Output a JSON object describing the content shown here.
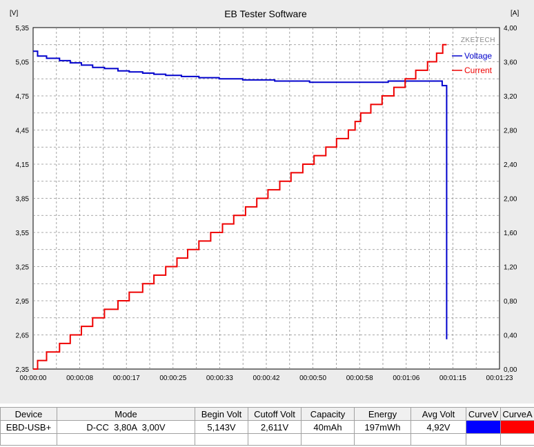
{
  "chart_data": {
    "type": "line",
    "title": "EB Tester Software",
    "brand": "ZKETECH",
    "y_left_unit": "[V]",
    "y_right_unit": "[A]",
    "y_left_ticks": [
      "5,35",
      "5,05",
      "4,75",
      "4,45",
      "4,15",
      "3,85",
      "3,55",
      "3,25",
      "2,95",
      "2,65",
      "2,35"
    ],
    "y_right_ticks": [
      "4,00",
      "3,60",
      "3,20",
      "2,80",
      "2,40",
      "2,00",
      "1,60",
      "1,20",
      "0,80",
      "0,40",
      "0,00"
    ],
    "x_ticks": [
      "00:00:00",
      "00:00:08",
      "00:00:17",
      "00:00:25",
      "00:00:33",
      "00:00:42",
      "00:00:50",
      "00:00:58",
      "00:01:06",
      "00:01:15",
      "00:01:23"
    ],
    "x_range_seconds": [
      0,
      83
    ],
    "y_left_range": [
      2.35,
      5.35
    ],
    "y_right_range": [
      0,
      4.0
    ],
    "grid": true,
    "legend_placement": "top-right",
    "series": [
      {
        "name": "Voltage",
        "axis": "left",
        "color": "#0000cc",
        "step": true,
        "points": [
          [
            0,
            5.143
          ],
          [
            0.8,
            5.1
          ],
          [
            2.4,
            5.08
          ],
          [
            4.7,
            5.06
          ],
          [
            6.6,
            5.04
          ],
          [
            8.6,
            5.02
          ],
          [
            10.6,
            5.0
          ],
          [
            12.7,
            4.99
          ],
          [
            15.1,
            4.97
          ],
          [
            17.1,
            4.96
          ],
          [
            19.5,
            4.95
          ],
          [
            21.5,
            4.94
          ],
          [
            23.6,
            4.93
          ],
          [
            26.4,
            4.92
          ],
          [
            29.5,
            4.91
          ],
          [
            33.1,
            4.9
          ],
          [
            37.3,
            4.89
          ],
          [
            43.0,
            4.88
          ],
          [
            49.2,
            4.87
          ],
          [
            63.2,
            4.88
          ],
          [
            72.8,
            4.84
          ],
          [
            73.6,
            4.84
          ],
          [
            73.6,
            2.611
          ]
        ]
      },
      {
        "name": "Current",
        "axis": "right",
        "color": "#ee0000",
        "step": true,
        "points": [
          [
            0,
            0.0
          ],
          [
            0.8,
            0.1
          ],
          [
            2.4,
            0.2
          ],
          [
            4.7,
            0.3
          ],
          [
            6.6,
            0.4
          ],
          [
            8.6,
            0.5
          ],
          [
            10.6,
            0.6
          ],
          [
            12.7,
            0.7
          ],
          [
            15.1,
            0.8
          ],
          [
            17.1,
            0.9
          ],
          [
            19.5,
            1.0
          ],
          [
            21.5,
            1.1
          ],
          [
            23.6,
            1.2
          ],
          [
            25.6,
            1.3
          ],
          [
            27.5,
            1.4
          ],
          [
            29.5,
            1.5
          ],
          [
            31.6,
            1.6
          ],
          [
            33.7,
            1.7
          ],
          [
            35.7,
            1.8
          ],
          [
            37.8,
            1.9
          ],
          [
            39.8,
            2.0
          ],
          [
            41.8,
            2.1
          ],
          [
            43.9,
            2.2
          ],
          [
            45.9,
            2.3
          ],
          [
            48.0,
            2.4
          ],
          [
            50.0,
            2.5
          ],
          [
            52.1,
            2.6
          ],
          [
            54.0,
            2.7
          ],
          [
            56.1,
            2.8
          ],
          [
            57.3,
            2.9
          ],
          [
            58.3,
            3.0
          ],
          [
            60.1,
            3.1
          ],
          [
            62.1,
            3.2
          ],
          [
            64.2,
            3.3
          ],
          [
            66.2,
            3.4
          ],
          [
            68.1,
            3.5
          ],
          [
            70.2,
            3.6
          ],
          [
            71.8,
            3.7
          ],
          [
            72.9,
            3.8
          ],
          [
            73.6,
            3.8
          ]
        ]
      }
    ]
  },
  "table": {
    "headers": [
      "Device",
      "Mode",
      "Begin Volt",
      "Cutoff Volt",
      "Capacity",
      "Energy",
      "Avg Volt",
      "CurveV",
      "CurveA"
    ],
    "row": [
      "EBD-USB+",
      "D-CC  3,80A  3,00V",
      "5,143V",
      "2,611V",
      "40mAh",
      "197mWh",
      "4,92V"
    ],
    "swatch_colors": {
      "curve_v": "#0000ff",
      "curve_a": "#ff0000"
    }
  }
}
